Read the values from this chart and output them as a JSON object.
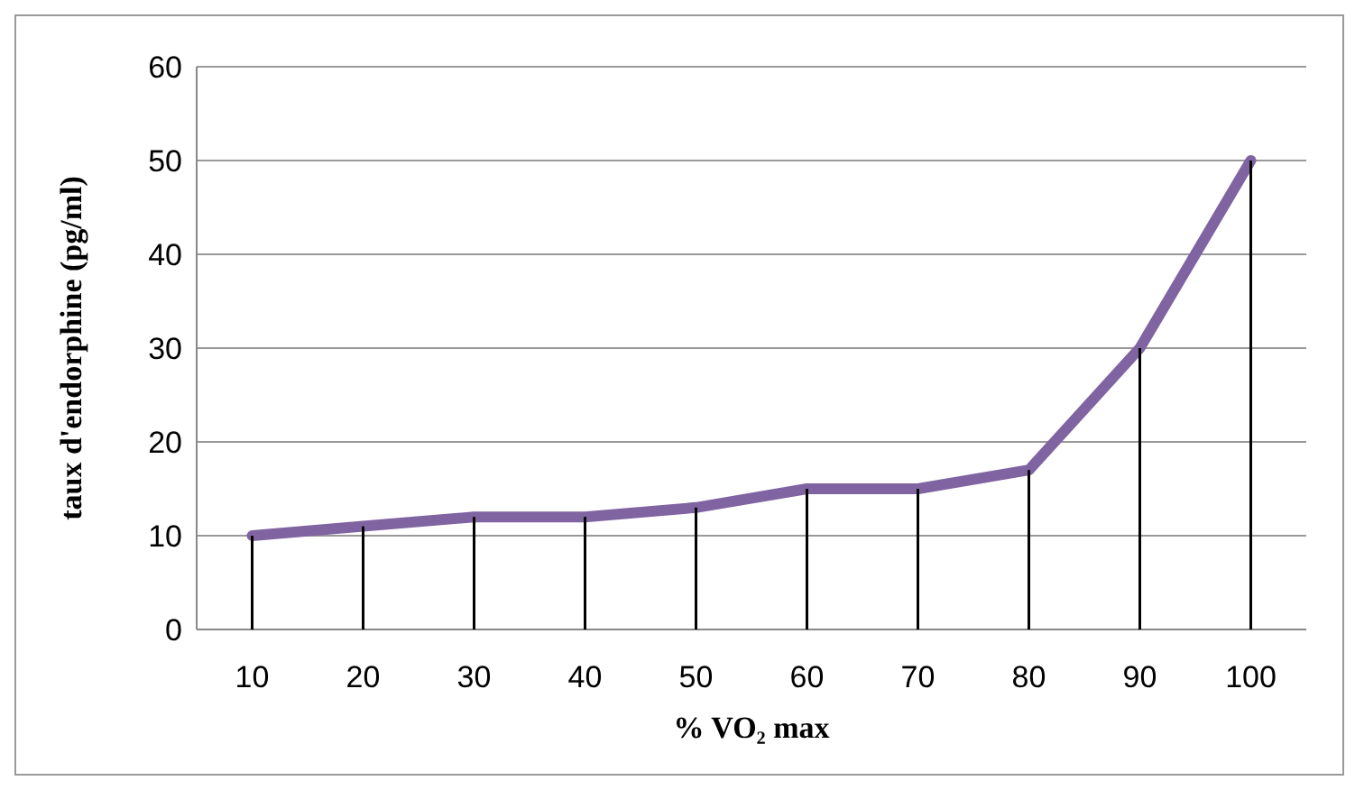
{
  "chart_data": {
    "type": "line",
    "xlabel": "% VO₂ max",
    "ylabel": "taux d'endorphine (pg/ml)",
    "categories": [
      "10",
      "20",
      "30",
      "40",
      "50",
      "60",
      "70",
      "80",
      "90",
      "100"
    ],
    "series": [
      {
        "type": "bar",
        "color": "#000000",
        "values": [
          10,
          11,
          12,
          12,
          13,
          15,
          15,
          17,
          30,
          50
        ]
      },
      {
        "color": "#8064a2",
        "values": [
          10,
          11,
          12,
          12,
          13,
          15,
          15,
          17,
          30,
          50
        ]
      }
    ],
    "ylim": [
      0,
      60
    ],
    "yticks": [
      0,
      10,
      20,
      30,
      40,
      50,
      60
    ],
    "grid": "y",
    "marker": "none",
    "line_style": "solid",
    "legend": false
  }
}
